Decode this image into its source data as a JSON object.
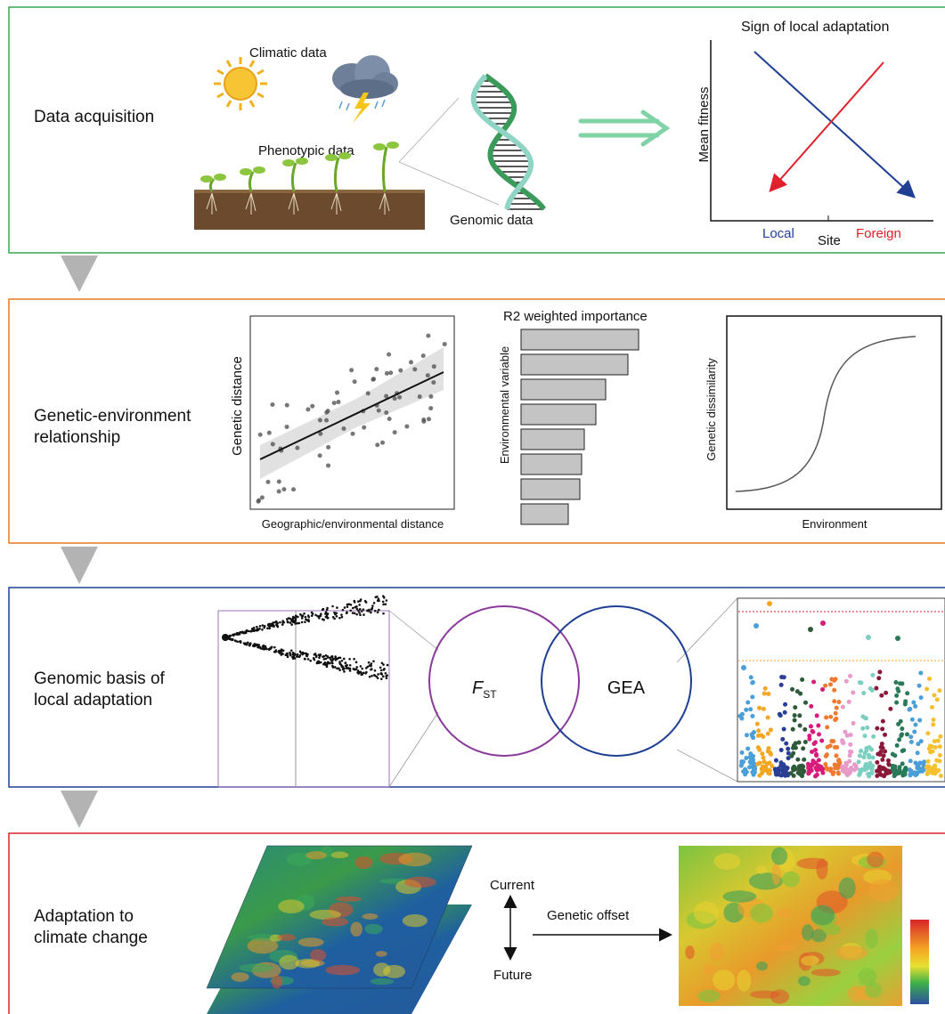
{
  "panel1": {
    "label": "Data acquisition",
    "climatic": "Climatic data",
    "phenotypic": "Phenotypic data",
    "genomic": "Genomic data",
    "plot": {
      "title": "Sign of local adaptation",
      "y_label": "Mean fitness",
      "x_label": "Site",
      "local": "Local",
      "foreign": "Foreign"
    }
  },
  "panel2": {
    "label": [
      "Genetic-environment",
      "relationship"
    ],
    "scatter": {
      "x_label": "Geographic/environmental  distance",
      "y_label": "Genetic distance"
    },
    "bars": {
      "title": "R2 weighted importance",
      "y_label": "Environmental variable"
    },
    "curve": {
      "x_label": "Environment",
      "y_label": "Genetic dissimilarity"
    }
  },
  "panel3": {
    "label": [
      "Genomic basis of",
      "local adaptation"
    ],
    "fst": {
      "main": "F",
      "sub": "ST"
    },
    "gea": "GEA"
  },
  "panel4": {
    "label": [
      "Adaptation to",
      "climate change"
    ],
    "current": "Current",
    "future": "Future",
    "offset": "Genetic offset"
  }
}
